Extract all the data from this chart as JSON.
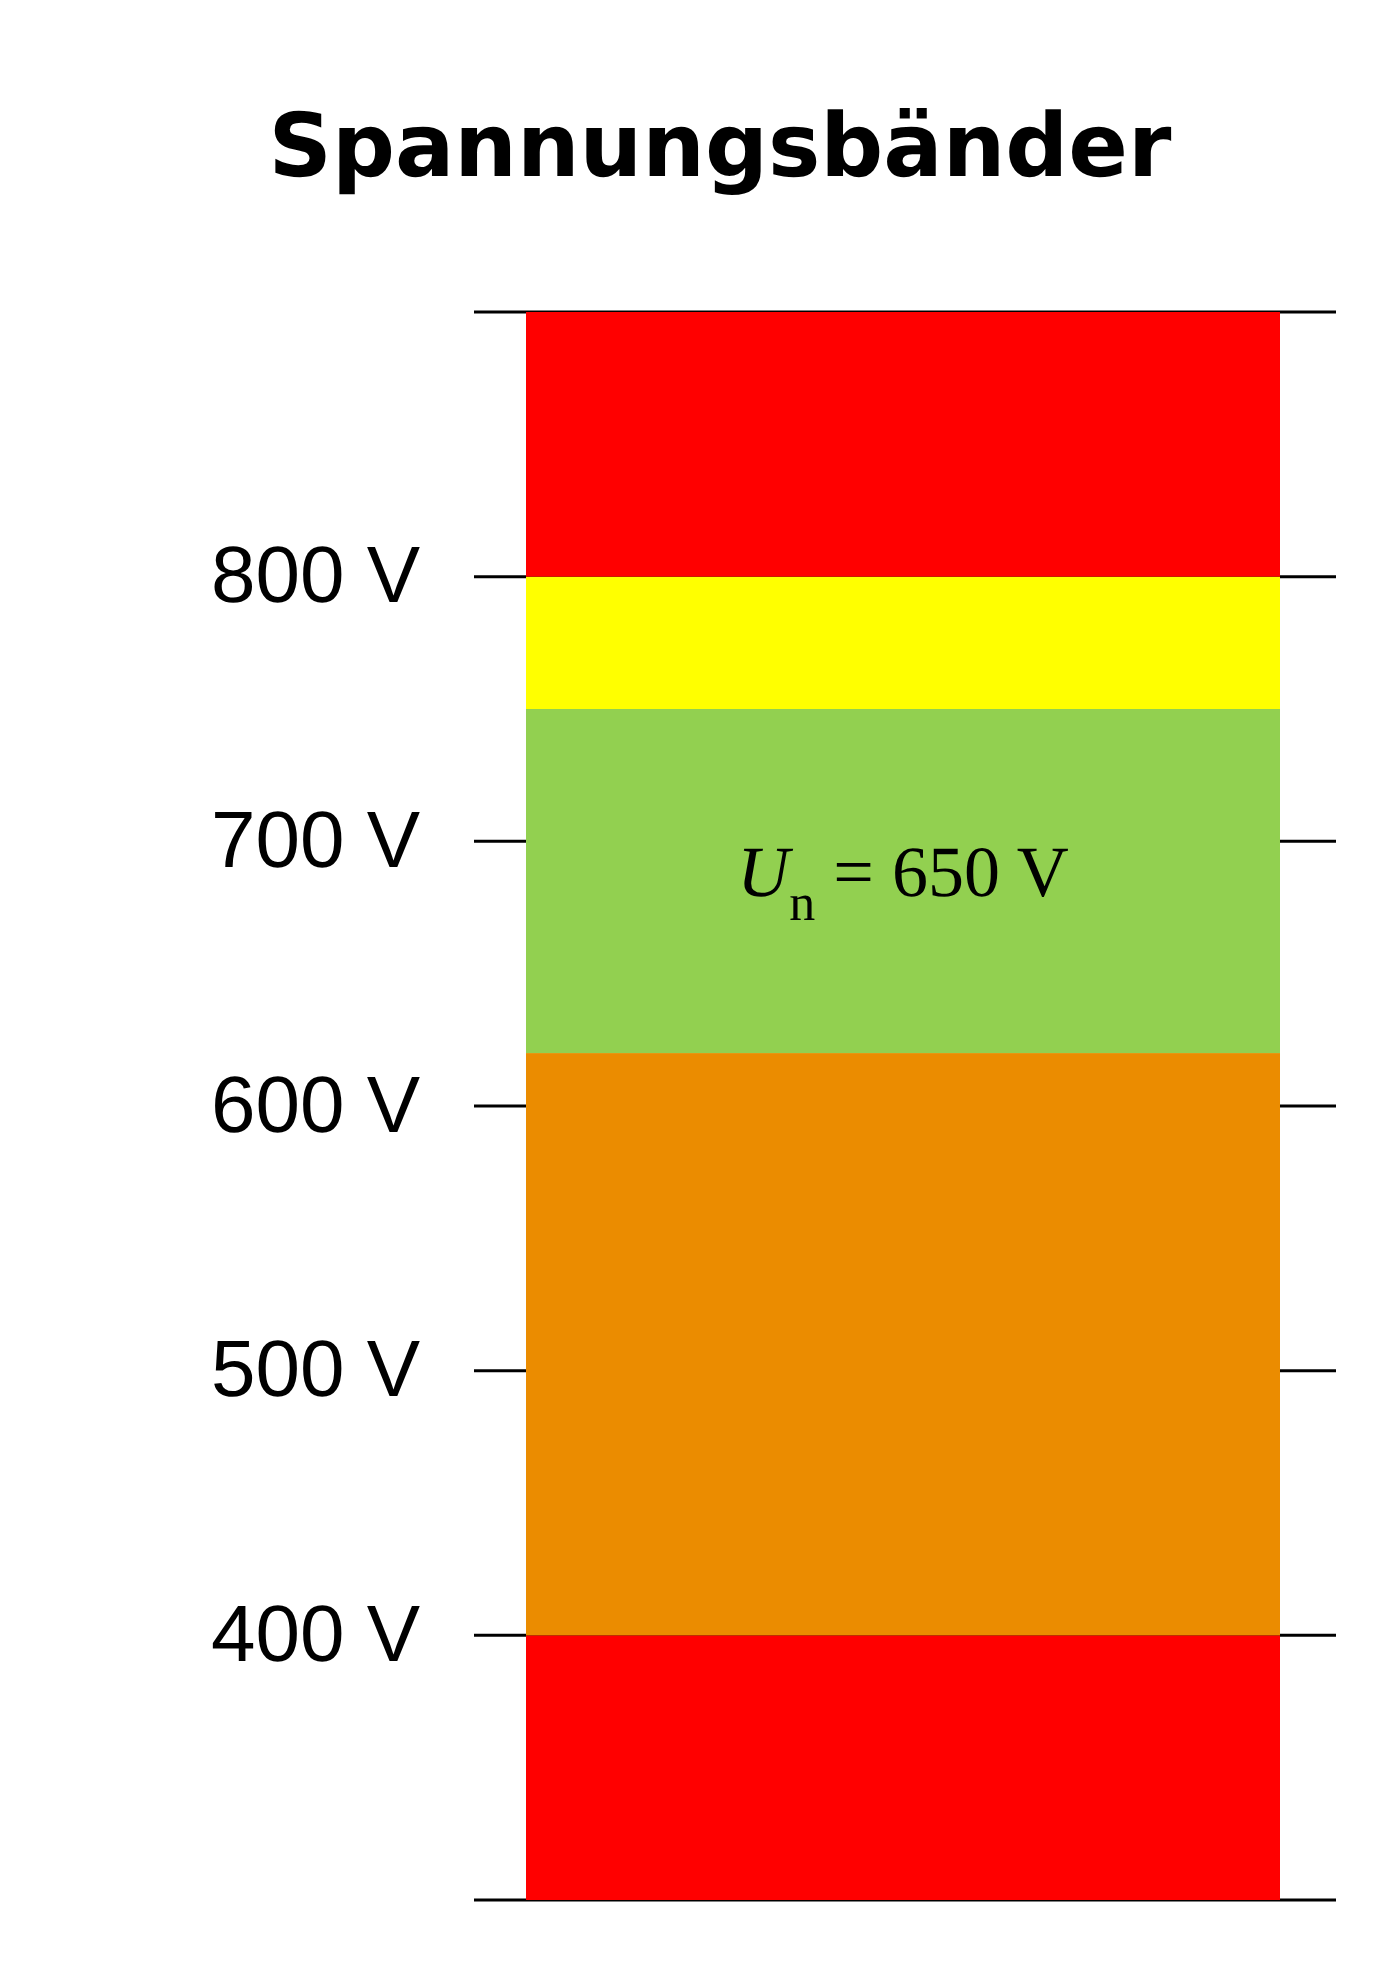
{
  "chart_data": {
    "type": "bar",
    "title": "Spannungsbänder",
    "categories": [
      null
    ],
    "bands": [
      {
        "axis": "y",
        "from": 300,
        "to": 400,
        "color": "#ff0000"
      },
      {
        "axis": "y",
        "from": 400,
        "to": 620,
        "color": "#eb8c00"
      },
      {
        "axis": "y",
        "from": 620,
        "to": 750,
        "color": "#92d050"
      },
      {
        "axis": "y",
        "from": 750,
        "to": 800,
        "color": "#ffff00"
      },
      {
        "axis": "y",
        "from": 800,
        "to": 900,
        "color": "#ff0000"
      }
    ],
    "ylim": [
      300,
      900
    ],
    "yticks": [
      {
        "value": 300,
        "label": null
      },
      {
        "value": 400,
        "label": "400 V"
      },
      {
        "value": 500,
        "label": "500 V"
      },
      {
        "value": 600,
        "label": "600 V"
      },
      {
        "value": 700,
        "label": "700 V"
      },
      {
        "value": 800,
        "label": "800 V"
      },
      {
        "value": 900,
        "label": null
      }
    ],
    "grid": "y",
    "annotations": [
      "U$_{n}$ = 650 V"
    ]
  }
}
